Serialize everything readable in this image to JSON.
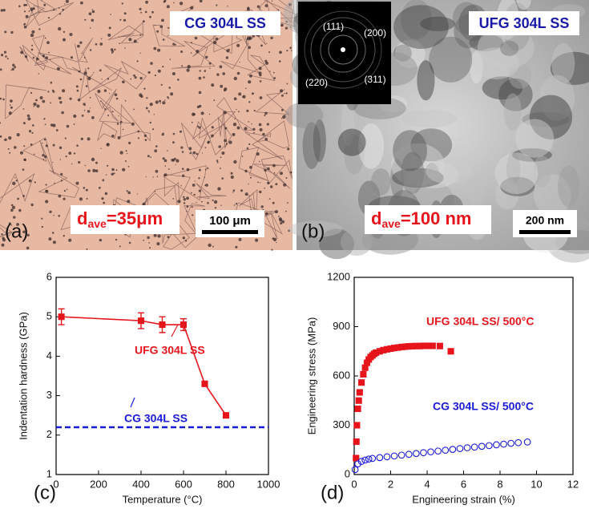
{
  "panels": [
    {
      "label": "(a)",
      "title": "CG 304L SS",
      "d_prefix": "d",
      "d_sub": "ave",
      "d_value": "=35μm",
      "scale_bar": "100 μm"
    },
    {
      "label": "(b)",
      "title": "UFG 304L SS",
      "d_prefix": "d",
      "d_sub": "ave",
      "d_value": "=100 nm",
      "scale_bar": "200 nm",
      "diffraction": [
        "(111)",
        "(200)",
        "(220)",
        "(311)"
      ]
    }
  ],
  "chart_data": [
    {
      "type": "line",
      "label": "(c)",
      "xlabel": "Temperature (°C)",
      "ylabel": "Indentation hardness (GPa)",
      "xlim": [
        0,
        1000
      ],
      "xticks": [
        0,
        200,
        400,
        600,
        800,
        1000
      ],
      "ylim": [
        1,
        6
      ],
      "yticks": [
        1,
        2,
        3,
        4,
        5,
        6
      ],
      "series": [
        {
          "name": "UFG 304L SS",
          "color": "#e8141c",
          "marker": "square",
          "filled": true,
          "x": [
            25,
            400,
            500,
            600,
            700,
            800
          ],
          "values": [
            5.0,
            4.9,
            4.8,
            4.8,
            3.3,
            2.5
          ],
          "errors": [
            0.2,
            0.2,
            0.2,
            0.15,
            0,
            0
          ]
        },
        {
          "name": "CG 304L SS",
          "color": "#1a1adb",
          "dashed": true,
          "x": [
            0,
            1000
          ],
          "values": [
            2.2,
            2.2
          ]
        }
      ]
    },
    {
      "type": "scatter",
      "label": "(d)",
      "xlabel": "Engineering strain (%)",
      "ylabel": "Engineering stress (MPa)",
      "xlim": [
        0,
        12
      ],
      "xticks": [
        0,
        2,
        4,
        6,
        8,
        10,
        12
      ],
      "ylim": [
        0,
        1200
      ],
      "yticks": [
        0,
        300,
        600,
        900,
        1200
      ],
      "series": [
        {
          "name": "UFG 304L SS/ 500°C",
          "color": "#e8141c",
          "marker": "square",
          "filled": true,
          "x": [
            0.1,
            0.12,
            0.15,
            0.2,
            0.25,
            0.3,
            0.4,
            0.5,
            0.6,
            0.7,
            0.8,
            0.9,
            1.0,
            1.1,
            1.2,
            1.4,
            1.6,
            1.8,
            2.0,
            2.2,
            2.4,
            2.6,
            2.8,
            3.0,
            3.2,
            3.4,
            3.6,
            3.8,
            4.0,
            4.3,
            4.7,
            5.3
          ],
          "values": [
            100,
            200,
            300,
            400,
            450,
            500,
            560,
            610,
            650,
            680,
            700,
            715,
            725,
            735,
            742,
            750,
            757,
            762,
            766,
            770,
            773,
            776,
            778,
            780,
            781,
            782,
            782,
            783,
            783,
            783,
            782,
            750
          ]
        },
        {
          "name": "CG 304L SS/ 500°C",
          "color": "#1a1adb",
          "marker": "circle",
          "filled": false,
          "x": [
            0.05,
            0.2,
            0.4,
            0.6,
            0.8,
            1.0,
            1.4,
            1.8,
            2.2,
            2.6,
            3.0,
            3.4,
            3.8,
            4.2,
            4.6,
            5.0,
            5.4,
            5.8,
            6.2,
            6.6,
            7.0,
            7.4,
            7.8,
            8.2,
            8.6,
            9.0,
            9.5
          ],
          "values": [
            30,
            65,
            80,
            88,
            94,
            98,
            103,
            108,
            113,
            118,
            123,
            128,
            133,
            138,
            143,
            148,
            153,
            158,
            163,
            167,
            172,
            176,
            181,
            185,
            190,
            194,
            198
          ]
        }
      ]
    }
  ]
}
